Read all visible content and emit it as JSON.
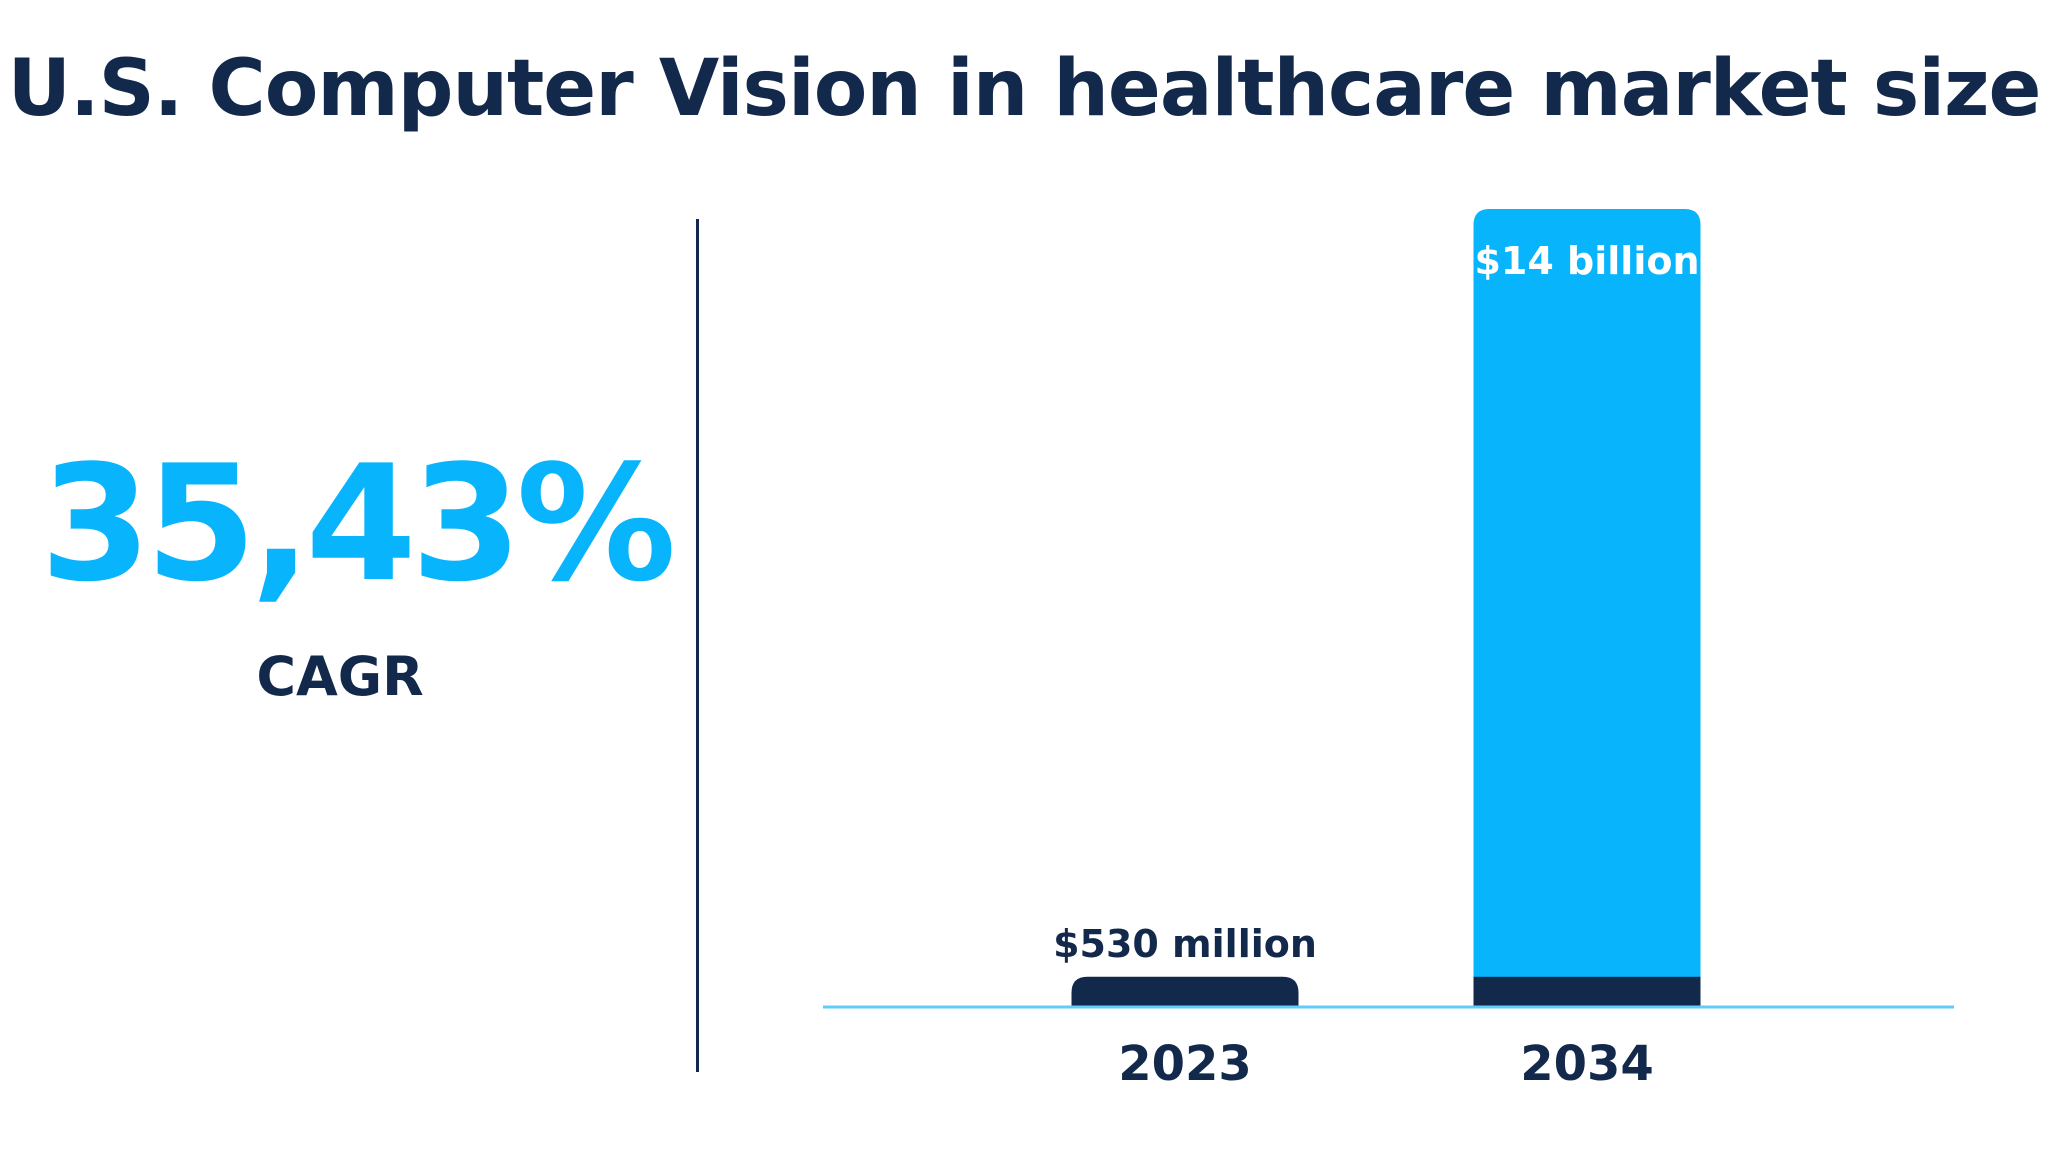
{
  "title": "U.S. Computer Vision in healthcare market size",
  "cagr": {
    "value": "35,43%",
    "label": "CAGR"
  },
  "colors": {
    "navy": "#13294b",
    "accent": "#08b4fc",
    "axis": "#5fcdfc"
  },
  "chart_data": {
    "type": "bar",
    "categories": [
      "2023",
      "2034"
    ],
    "values": [
      0.53,
      14
    ],
    "unit": "USD billion",
    "data_labels": [
      "$530 million",
      "$14 billion"
    ],
    "bar_colors": [
      "#13294b",
      "#08b4fc"
    ],
    "xlabel": "",
    "ylabel": "",
    "ylim": [
      0,
      14
    ],
    "grid": false,
    "legend": "none"
  }
}
